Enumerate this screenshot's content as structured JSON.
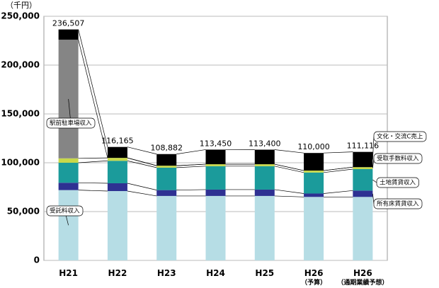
{
  "chart_data": {
    "type": "stacked-bar",
    "y_unit_label": "（千円）",
    "categories": [
      "H21",
      "H22",
      "H23",
      "H24",
      "H25",
      "H26\n（予算）",
      "H26\n（通期業績予想）"
    ],
    "series": [
      {
        "name": "受託料収入",
        "color": "#b6dde5",
        "values": [
          72000,
          71000,
          66000,
          66000,
          66000,
          65000,
          65000
        ]
      },
      {
        "name": "所有床賃貸収入",
        "color": "#2e3192",
        "values": [
          7500,
          8000,
          6000,
          6500,
          6500,
          3500,
          6500
        ]
      },
      {
        "name": "土地賃貸収入",
        "color": "#1b9b9b",
        "values": [
          20500,
          23000,
          23000,
          24000,
          24000,
          21500,
          22000
        ]
      },
      {
        "name": "受取手数料収入",
        "color": "#c8d84a",
        "values": [
          4500,
          3000,
          2000,
          2000,
          2000,
          2000,
          2000
        ]
      },
      {
        "name": "駅前駐車場収入",
        "color": "#858585",
        "values": [
          121500,
          0,
          0,
          0,
          0,
          0,
          0
        ]
      },
      {
        "name": "文化・交流C売上",
        "color": "#000000",
        "values": [
          10507,
          11165,
          11882,
          14950,
          14900,
          18000,
          15616
        ]
      }
    ],
    "totals": {
      "values": [
        236507,
        116165,
        108882,
        113450,
        113400,
        110000,
        111116
      ],
      "value_labels": [
        "236,507",
        "116,165",
        "108,882",
        "113,450",
        "113,400",
        "110,000",
        "111,116"
      ]
    },
    "ylim": [
      0,
      250000
    ],
    "yticks": [
      0,
      {
        "value": 50000,
        "label": "50,000"
      },
      {
        "value": 100000,
        "label": "100,000"
      },
      {
        "value": 150000,
        "label": "150,000"
      },
      {
        "value": 200000,
        "label": "200,000"
      },
      {
        "value": 250000,
        "label": "250,000"
      }
    ],
    "grid": true
  }
}
